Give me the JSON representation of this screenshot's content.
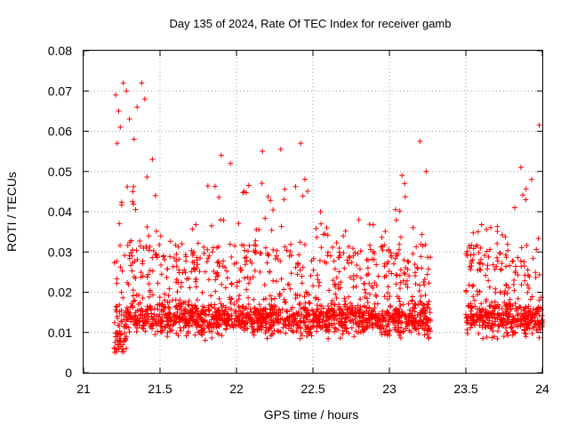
{
  "chart_data": {
    "type": "scatter",
    "title": "Day 135 of 2024, Rate Of TEC Index for receiver gamb",
    "xlabel": "GPS time / hours",
    "ylabel": "ROTI / TECUs",
    "xlim": [
      21,
      24
    ],
    "ylim": [
      0,
      0.08
    ],
    "x_ticks": [
      "21",
      "21.5",
      "22",
      "22.5",
      "23",
      "23.5",
      "24"
    ],
    "y_ticks": [
      "0",
      "0.01",
      "0.02",
      "0.03",
      "0.04",
      "0.05",
      "0.06",
      "0.07",
      "0.08"
    ],
    "grid": true,
    "marker": "+",
    "color": "#ff0000",
    "series": [
      {
        "name": "ROTI",
        "segments": [
          {
            "x_start": 21.2,
            "x_end": 23.27
          },
          {
            "x_start": 23.5,
            "x_end": 24.0
          }
        ],
        "points": [
          [
            21.21,
            0.069
          ],
          [
            21.23,
            0.065
          ],
          [
            21.26,
            0.072
          ],
          [
            21.28,
            0.07
          ],
          [
            21.3,
            0.063
          ],
          [
            21.33,
            0.058
          ],
          [
            21.35,
            0.066
          ],
          [
            21.38,
            0.072
          ],
          [
            21.4,
            0.068
          ],
          [
            21.22,
            0.057
          ],
          [
            21.24,
            0.061
          ],
          [
            21.32,
            0.0425
          ],
          [
            21.45,
            0.053
          ],
          [
            21.47,
            0.044
          ],
          [
            21.96,
            0.052
          ],
          [
            21.9,
            0.054
          ],
          [
            22.17,
            0.055
          ],
          [
            22.29,
            0.0555
          ],
          [
            22.42,
            0.057
          ],
          [
            23.2,
            0.0575
          ],
          [
            23.24,
            0.05
          ],
          [
            23.1,
            0.047
          ],
          [
            23.98,
            0.0615
          ],
          [
            23.86,
            0.051
          ],
          [
            23.93,
            0.048
          ],
          [
            23.82,
            0.041
          ],
          [
            23.58,
            0.035
          ],
          [
            22.8,
            0.038
          ],
          [
            22.55,
            0.04
          ],
          [
            22.05,
            0.045
          ]
        ]
      }
    ]
  }
}
